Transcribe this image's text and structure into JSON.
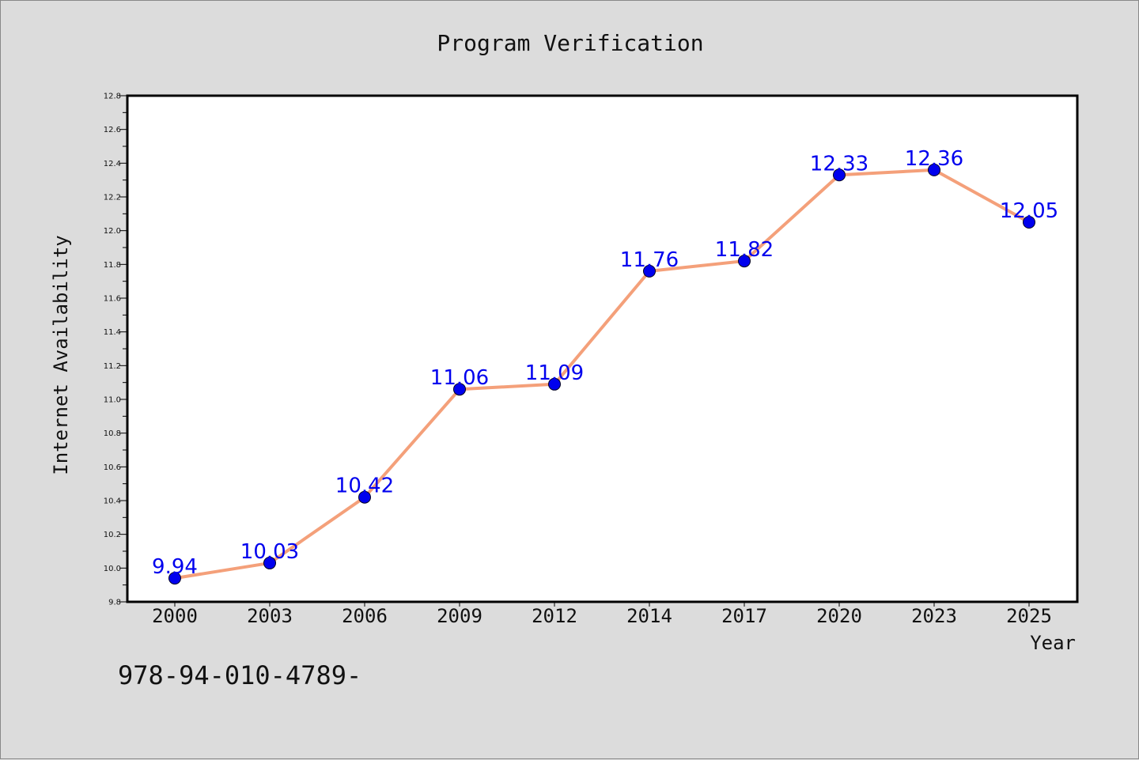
{
  "chart_data": {
    "type": "line",
    "title": "Program Verification",
    "xlabel": "Year",
    "ylabel": "Internet Availability",
    "categories": [
      "2000",
      "2003",
      "2006",
      "2009",
      "2012",
      "2014",
      "2017",
      "2020",
      "2023",
      "2025"
    ],
    "series": [
      {
        "values": [
          9.94,
          10.03,
          10.42,
          11.06,
          11.09,
          11.76,
          11.82,
          12.33,
          12.36,
          12.05
        ]
      }
    ],
    "data_labels": [
      "9.94",
      "10.03",
      "10.42",
      "11.06",
      "11.09",
      "11.76",
      "11.82",
      "12.33",
      "12.36",
      "12.05"
    ],
    "ylim": [
      9.8,
      12.8
    ],
    "yticks": [
      "9.8",
      "10.0",
      "10.2",
      "10.4",
      "10.6",
      "10.8",
      "11.0",
      "11.2",
      "11.4",
      "11.6",
      "11.8",
      "12.0",
      "12.2",
      "12.4",
      "12.6",
      "12.8"
    ],
    "grid": false,
    "legend": "none",
    "colors": {
      "line": "#f4a07a",
      "marker": "#0000ee",
      "data_label": "#0000ee",
      "background": "#dcdcdc",
      "plot_area": "#ffffff"
    }
  },
  "footer": {
    "text": "978-94-010-4789-"
  }
}
